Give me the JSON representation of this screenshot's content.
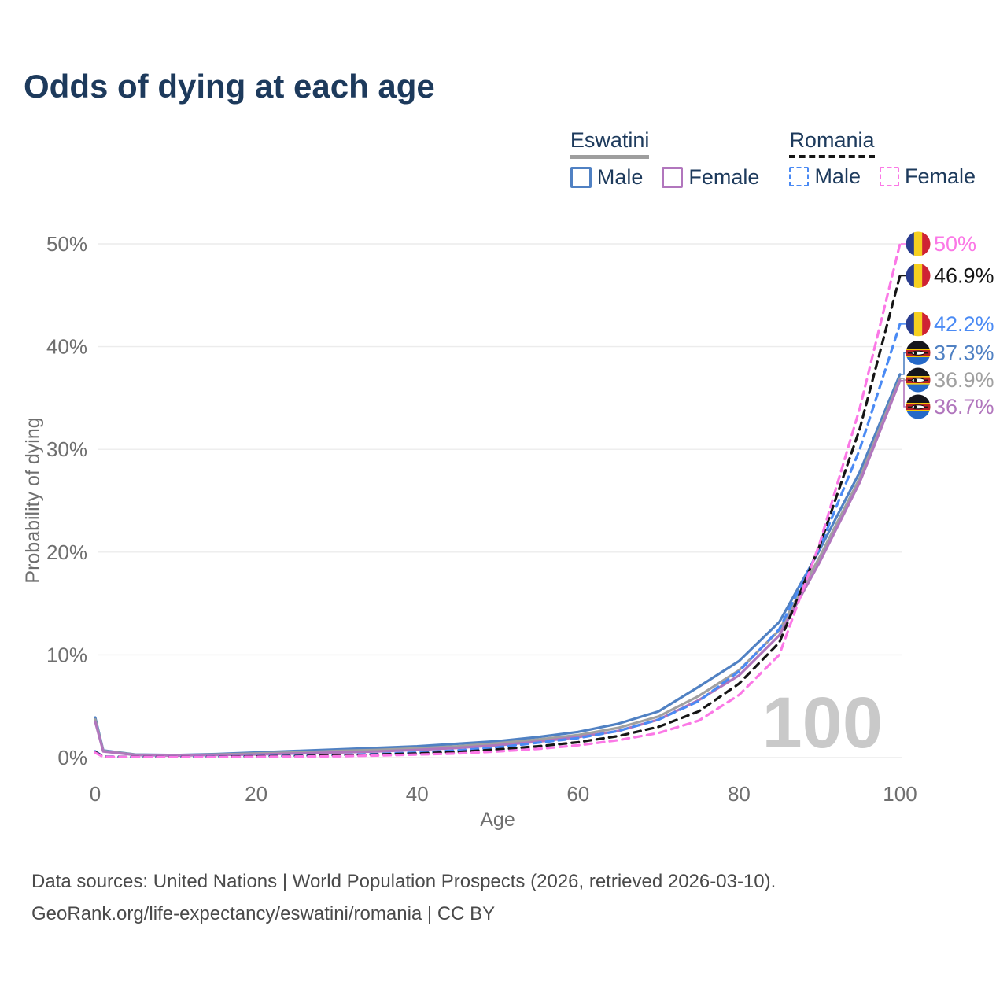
{
  "title": "Odds of dying at each age",
  "legend": {
    "groups": [
      {
        "name": "Eswatini",
        "line_style": "solid",
        "line_color": "#9e9e9e",
        "items": [
          {
            "label": "Male",
            "color": "#5081c3"
          },
          {
            "label": "Female",
            "color": "#b176bd"
          }
        ]
      },
      {
        "name": "Romania",
        "line_style": "dashed",
        "line_color": "#151515",
        "items": [
          {
            "label": "Male",
            "color": "#4a8af4"
          },
          {
            "label": "Female",
            "color": "#fb78e6"
          }
        ]
      }
    ]
  },
  "chart_data": {
    "type": "line",
    "title": "Odds of dying at each age",
    "xlabel": "Age",
    "ylabel": "Probability of dying",
    "xlim": [
      0,
      100
    ],
    "ylim": [
      0,
      50
    ],
    "xticks": [
      0,
      20,
      40,
      60,
      80,
      100
    ],
    "yticks": [
      0,
      10,
      20,
      30,
      40,
      50
    ],
    "ytick_suffix": "%",
    "grid": true,
    "legend_position": "top-right",
    "watermark": "100",
    "x": [
      0,
      1,
      5,
      10,
      15,
      20,
      25,
      30,
      35,
      40,
      45,
      50,
      55,
      60,
      65,
      70,
      75,
      80,
      85,
      90,
      95,
      100
    ],
    "series": [
      {
        "name": "Eswatini Male",
        "country": "Eswatini",
        "sex": "Male",
        "flag": "eswatini",
        "color": "#5081c3",
        "dash": false,
        "values": [
          3.9,
          0.7,
          0.3,
          0.25,
          0.35,
          0.5,
          0.65,
          0.8,
          0.95,
          1.1,
          1.35,
          1.6,
          2.0,
          2.5,
          3.3,
          4.5,
          6.9,
          9.4,
          13.2,
          20.2,
          27.8,
          37.3
        ],
        "end_label": {
          "text": "37.3%",
          "label_at": 39.4
        }
      },
      {
        "name": "Eswatini Both sexes",
        "country": "Eswatini",
        "sex": "Both",
        "flag": "eswatini",
        "color": "#a0a0a0",
        "dash": false,
        "values": [
          3.7,
          0.65,
          0.28,
          0.22,
          0.3,
          0.4,
          0.5,
          0.65,
          0.75,
          0.9,
          1.1,
          1.4,
          1.75,
          2.2,
          2.9,
          4.0,
          6.0,
          8.5,
          12.4,
          19.5,
          27.2,
          36.9
        ],
        "end_label": {
          "text": "36.9%",
          "label_at": 36.75
        }
      },
      {
        "name": "Eswatini Female",
        "country": "Eswatini",
        "sex": "Female",
        "flag": "eswatini",
        "color": "#b176bd",
        "dash": false,
        "values": [
          3.5,
          0.6,
          0.25,
          0.2,
          0.26,
          0.3,
          0.4,
          0.5,
          0.6,
          0.75,
          0.95,
          1.2,
          1.55,
          2.0,
          2.6,
          3.7,
          5.6,
          8.0,
          11.9,
          19.0,
          26.8,
          36.7
        ],
        "end_label": {
          "text": "36.7%",
          "label_at": 34.15
        }
      },
      {
        "name": "Romania Male",
        "country": "Romania",
        "sex": "Male",
        "flag": "romania",
        "color": "#4a8af4",
        "dash": true,
        "values": [
          0.62,
          0.09,
          0.07,
          0.06,
          0.1,
          0.14,
          0.18,
          0.25,
          0.35,
          0.5,
          0.7,
          1.0,
          1.45,
          1.9,
          2.6,
          3.7,
          5.5,
          8.4,
          12.5,
          20.4,
          30.0,
          42.2
        ],
        "end_label": {
          "text": "42.2%",
          "label_at": 42.2
        }
      },
      {
        "name": "Romania Both sexes",
        "country": "Romania",
        "sex": "Both",
        "flag": "romania",
        "color": "#151515",
        "dash": true,
        "values": [
          0.55,
          0.08,
          0.06,
          0.05,
          0.08,
          0.12,
          0.15,
          0.2,
          0.3,
          0.4,
          0.55,
          0.8,
          1.1,
          1.5,
          2.1,
          3.0,
          4.5,
          7.2,
          11.2,
          20.6,
          32.0,
          46.9
        ],
        "end_label": {
          "text": "46.9%",
          "label_at": 46.9
        }
      },
      {
        "name": "Romania Female",
        "country": "Romania",
        "sex": "Female",
        "flag": "romania",
        "color": "#fb78e6",
        "dash": true,
        "values": [
          0.48,
          0.07,
          0.05,
          0.05,
          0.06,
          0.08,
          0.1,
          0.13,
          0.2,
          0.3,
          0.4,
          0.6,
          0.85,
          1.2,
          1.7,
          2.4,
          3.6,
          6.1,
          10.0,
          20.8,
          34.0,
          50.0
        ],
        "end_label": {
          "text": "50%",
          "label_at": 50.0
        }
      }
    ]
  },
  "footer": {
    "line1": "Data sources: United Nations | World Population Prospects (2026, retrieved 2026-03-10).",
    "line2": "GeoRank.org/life-expectancy/eswatini/romania | CC BY"
  }
}
